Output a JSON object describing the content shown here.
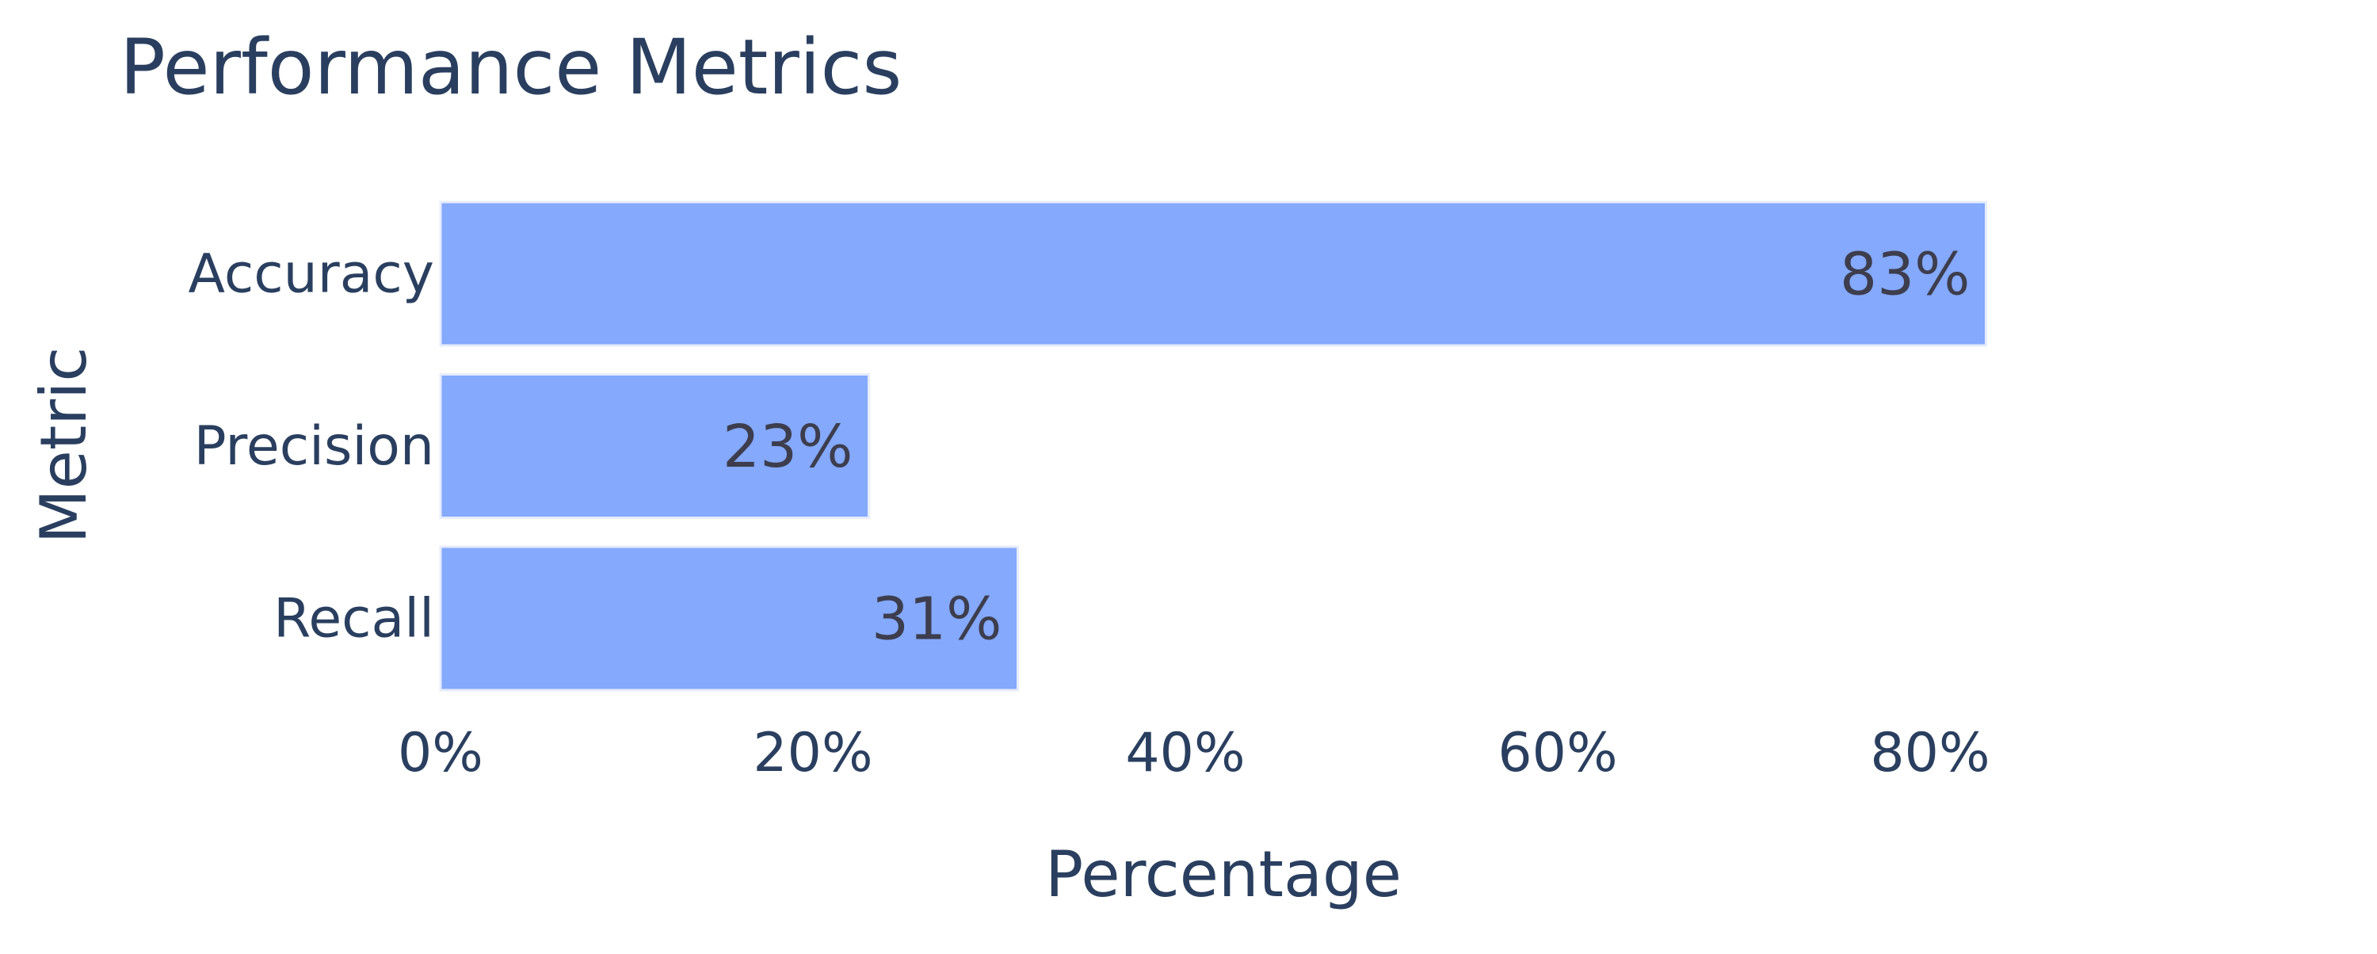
{
  "chart_data": {
    "type": "bar",
    "orientation": "horizontal",
    "title": "Performance Metrics",
    "xlabel": "Percentage",
    "ylabel": "Metric",
    "categories": [
      "Accuracy",
      "Precision",
      "Recall"
    ],
    "values": [
      83,
      23,
      31
    ],
    "data_labels": [
      "83%",
      "23%",
      "31%"
    ],
    "xlim": [
      0,
      100
    ],
    "x_ticks": [
      0,
      20,
      40,
      60,
      80
    ],
    "x_tick_labels": [
      "0%",
      "20%",
      "40%",
      "60%",
      "80%"
    ],
    "grid": false,
    "legend": "none",
    "colors": {
      "bar_fill": "#84a9fd",
      "bar_outline": "#e6ecfb",
      "text": "#2a3f5f",
      "data_label": "#3d3d4d",
      "background": "#ffffff"
    }
  }
}
